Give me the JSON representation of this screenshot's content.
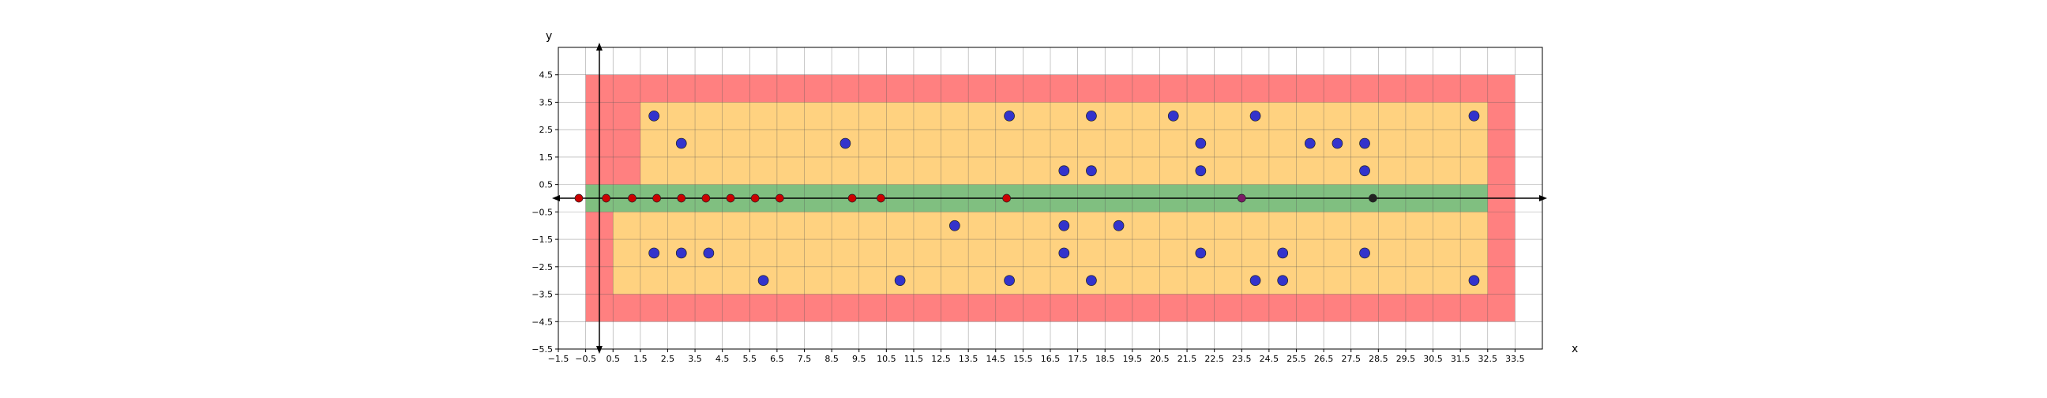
{
  "chart_data": {
    "type": "scatter",
    "title": "",
    "xlabel": "x",
    "ylabel": "y",
    "xlim": [
      -1.5,
      34.5
    ],
    "ylim": [
      -5.5,
      5.5
    ],
    "grid": true,
    "x_ticks": [
      -1.5,
      -0.5,
      0.5,
      1.5,
      2.5,
      3.5,
      4.5,
      5.5,
      6.5,
      7.5,
      8.5,
      9.5,
      10.5,
      11.5,
      12.5,
      13.5,
      14.5,
      15.5,
      16.5,
      17.5,
      18.5,
      19.5,
      20.5,
      21.5,
      22.5,
      23.5,
      24.5,
      25.5,
      26.5,
      27.5,
      28.5,
      29.5,
      30.5,
      31.5,
      32.5,
      33.5
    ],
    "x_tick_labels": [
      "−1.5",
      "−0.5",
      "0.5",
      "1.5",
      "2.5",
      "3.5",
      "4.5",
      "5.5",
      "6.5",
      "7.5",
      "8.5",
      "9.5",
      "10.5",
      "11.5",
      "12.5",
      "13.5",
      "14.5",
      "15.5",
      "16.5",
      "17.5",
      "18.5",
      "19.5",
      "20.5",
      "21.5",
      "22.5",
      "23.5",
      "24.5",
      "25.5",
      "26.5",
      "27.5",
      "28.5",
      "29.5",
      "30.5",
      "31.5",
      "32.5",
      "33.5"
    ],
    "y_ticks": [
      4.5,
      3.5,
      2.5,
      1.5,
      0.5,
      -0.5,
      -1.5,
      -2.5,
      -3.5,
      -4.5,
      -5.5
    ],
    "y_tick_labels": [
      "4.5",
      "3.5",
      "2.5",
      "1.5",
      "0.5",
      "−0.5",
      "−1.5",
      "−2.5",
      "−3.5",
      "−4.5",
      "−5.5"
    ],
    "regions": [
      {
        "color": "#ff8080",
        "x": [
          -0.5,
          33.5
        ],
        "y": [
          -4.5,
          4.5
        ]
      },
      {
        "color": "#ffd280",
        "x": [
          0.5,
          32.5
        ],
        "y": [
          -3.5,
          -0.5
        ]
      },
      {
        "color": "#ffd280",
        "x": [
          1.5,
          32.5
        ],
        "y": [
          0.5,
          3.5
        ]
      },
      {
        "color": "#80bf80",
        "x": [
          -0.5,
          32.5
        ],
        "y": [
          -0.5,
          0.5
        ]
      }
    ],
    "series": [
      {
        "color": "#3333cc",
        "points": [
          [
            2,
            3
          ],
          [
            3,
            2
          ],
          [
            9,
            2
          ],
          [
            15,
            3
          ],
          [
            17,
            1
          ],
          [
            18,
            1
          ],
          [
            18,
            3
          ],
          [
            21,
            3
          ],
          [
            22,
            2
          ],
          [
            22,
            1
          ],
          [
            24,
            3
          ],
          [
            26,
            2
          ],
          [
            27,
            2
          ],
          [
            28,
            2
          ],
          [
            28,
            1
          ],
          [
            32,
            3
          ],
          [
            13,
            -1
          ],
          [
            17,
            -1
          ],
          [
            19,
            -1
          ],
          [
            2,
            -2
          ],
          [
            3,
            -2
          ],
          [
            4,
            -2
          ],
          [
            17,
            -2
          ],
          [
            22,
            -2
          ],
          [
            25,
            -2
          ],
          [
            28,
            -2
          ],
          [
            6,
            -3
          ],
          [
            11,
            -3
          ],
          [
            15,
            -3
          ],
          [
            18,
            -3
          ],
          [
            24,
            -3
          ],
          [
            25,
            -3
          ],
          [
            32,
            -3
          ]
        ]
      },
      {
        "color": "#cc0000",
        "points": [
          [
            -0.75,
            0
          ],
          [
            0.25,
            0
          ],
          [
            1.2,
            0
          ],
          [
            2.1,
            0
          ],
          [
            3,
            0
          ],
          [
            3.9,
            0
          ],
          [
            4.8,
            0
          ],
          [
            5.7,
            0
          ],
          [
            6.6,
            0
          ],
          [
            9.25,
            0
          ],
          [
            10.3,
            0
          ],
          [
            14.9,
            0
          ]
        ]
      },
      {
        "color": "#7a1a66",
        "points": [
          [
            23.5,
            0
          ]
        ]
      },
      {
        "color": "#222222",
        "points": [
          [
            28.3,
            0
          ]
        ]
      }
    ]
  }
}
